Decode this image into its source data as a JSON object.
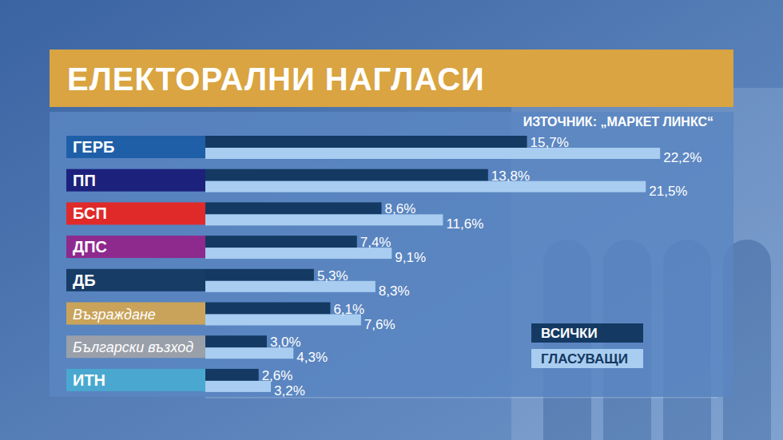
{
  "chart_data": {
    "type": "bar",
    "orientation": "horizontal",
    "title": "ЕЛЕКТОРАЛНИ НАГЛАСИ",
    "annotations": [
      "ИЗТОЧНИК: „МАРКЕТ ЛИНКС“"
    ],
    "categories": [
      "ГЕРБ",
      "ПП",
      "БСП",
      "ДПС",
      "ДБ",
      "Възраждане",
      "Български възход",
      "ИТН"
    ],
    "series": [
      {
        "name": "ВСИЧКИ",
        "color": "#143a63",
        "values": [
          15.7,
          13.8,
          8.6,
          7.4,
          5.3,
          6.1,
          3.0,
          2.6
        ],
        "value_labels": [
          "15,7%",
          "13,8%",
          "8,6%",
          "7,4%",
          "5,3%",
          "6,1%",
          "3,0%",
          "2,6%"
        ]
      },
      {
        "name": "ГЛАСУВАЩИ",
        "color": "#a9cdf0",
        "values": [
          22.2,
          21.5,
          11.6,
          9.1,
          8.3,
          7.6,
          4.3,
          3.2
        ],
        "value_labels": [
          "22,2%",
          "21,5%",
          "11,6%",
          "9,1%",
          "8,3%",
          "7,6%",
          "4,3%",
          "3,2%"
        ]
      }
    ],
    "xlim": [
      0,
      25
    ],
    "tick_labels": false,
    "grid": false,
    "data_labels": true,
    "legend": "lower right"
  }
}
